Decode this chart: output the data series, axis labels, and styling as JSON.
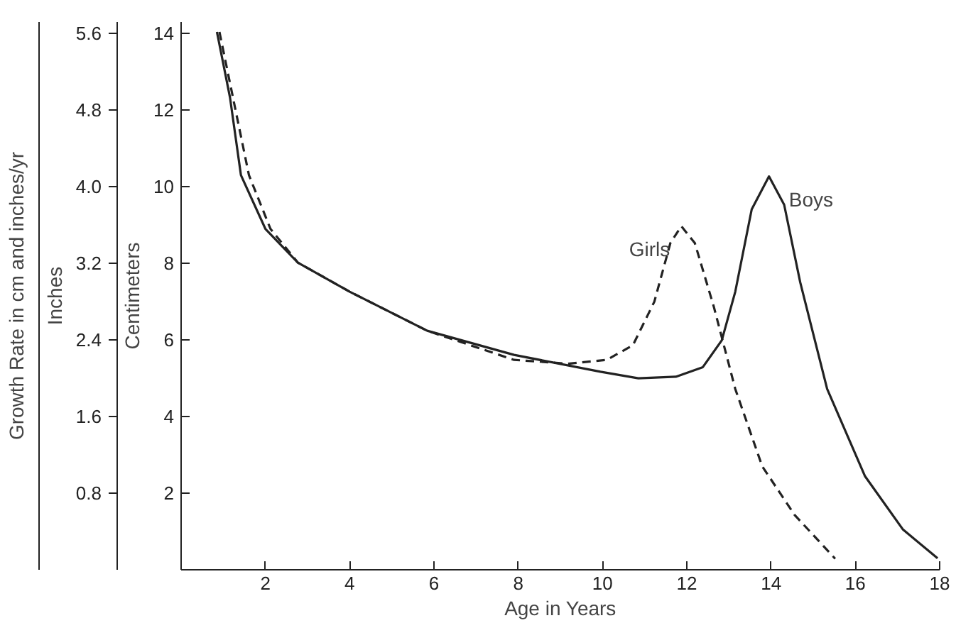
{
  "chart_data": {
    "type": "line",
    "xlabel": "Age in Years",
    "ylabel": "Centimeters",
    "y2label": "Inches",
    "annotations": [
      "Growth Rate in cm and inches/yr"
    ],
    "xlim": [
      0,
      18
    ],
    "xticks": [
      2,
      4,
      6,
      8,
      10,
      12,
      14,
      16,
      18
    ],
    "ylim": [
      0,
      14.3
    ],
    "yticks": [
      2,
      4,
      6,
      8,
      10,
      12,
      14
    ],
    "y2lim": [
      0,
      5.72
    ],
    "y2ticks": [
      {
        "value": 0.8,
        "label": "0.8"
      },
      {
        "value": 1.6,
        "label": "1.6"
      },
      {
        "value": 2.4,
        "label": "2.4"
      },
      {
        "value": 3.2,
        "label": "3.2"
      },
      {
        "value": 4.0,
        "label": "4.0"
      },
      {
        "value": 4.8,
        "label": "4.8"
      },
      {
        "value": 5.6,
        "label": "5.6"
      }
    ],
    "grid": false,
    "legend": false,
    "marker": "none",
    "series": [
      {
        "name": "Girls",
        "color": "#222222",
        "line_style": "dashed",
        "x": [
          0.91,
          1.23,
          1.61,
          2.12,
          2.77,
          4.0,
          5.84,
          7.9,
          9.18,
          10.1,
          10.72,
          11.23,
          11.61,
          11.87,
          12.19,
          12.64,
          13.15,
          13.79,
          14.56,
          15.52
        ],
        "values": [
          14.04,
          12.33,
          10.3,
          8.9,
          8.02,
          7.26,
          6.24,
          5.48,
          5.38,
          5.48,
          5.86,
          7.0,
          8.53,
          8.97,
          8.53,
          6.87,
          4.72,
          2.7,
          1.43,
          0.29
        ]
      },
      {
        "name": "Boys",
        "color": "#222222",
        "line_style": "solid",
        "x": [
          0.85,
          1.16,
          1.42,
          2.0,
          2.77,
          4.0,
          5.84,
          7.9,
          9.95,
          10.85,
          11.74,
          12.38,
          12.83,
          13.15,
          13.54,
          13.95,
          14.31,
          14.69,
          15.33,
          16.23,
          17.13,
          17.95
        ],
        "values": [
          14.04,
          12.33,
          10.3,
          8.9,
          8.02,
          7.26,
          6.24,
          5.61,
          5.17,
          5.0,
          5.04,
          5.29,
          5.99,
          7.26,
          9.41,
          10.27,
          9.53,
          7.51,
          4.72,
          2.44,
          1.05,
          0.3
        ]
      }
    ]
  }
}
